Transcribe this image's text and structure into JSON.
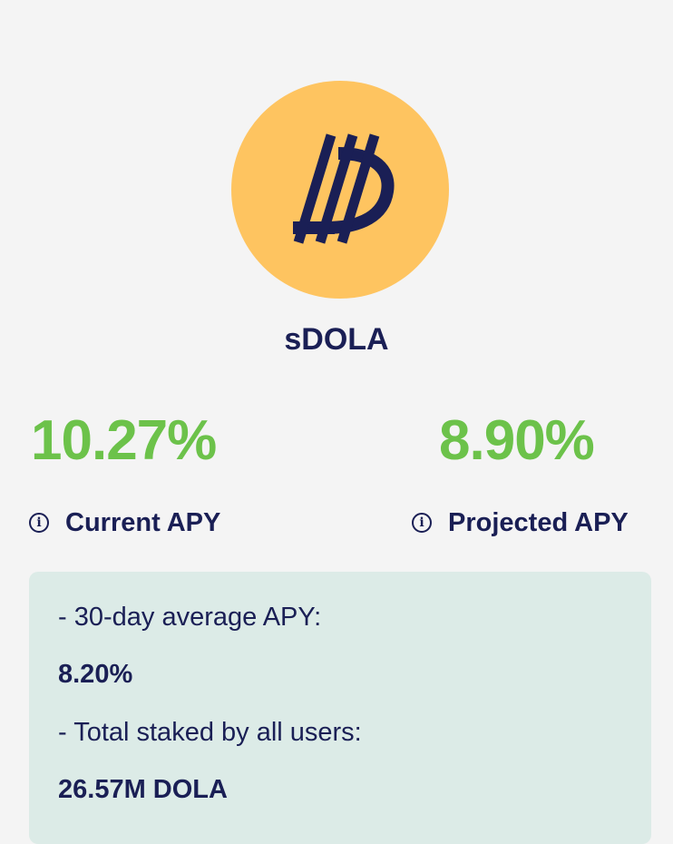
{
  "colors": {
    "background": "#f4f4f4",
    "logo_bg": "#fec460",
    "navy": "#1a1f55",
    "green": "#6cc24a",
    "card_bg": "#dcebe7"
  },
  "token": {
    "logo_icon": "dola-logo-icon",
    "name": "sDOLA"
  },
  "apy": {
    "current": {
      "value": "10.27%",
      "label": "Current APY",
      "icon": "info-icon"
    },
    "projected": {
      "value": "8.90%",
      "label": "Projected APY",
      "icon": "info-icon"
    }
  },
  "info_card": {
    "avg_apy_label": "- 30-day average APY:",
    "avg_apy_value": "8.20%",
    "total_staked_label": "- Total staked by all users:",
    "total_staked_value": "26.57M DOLA"
  }
}
